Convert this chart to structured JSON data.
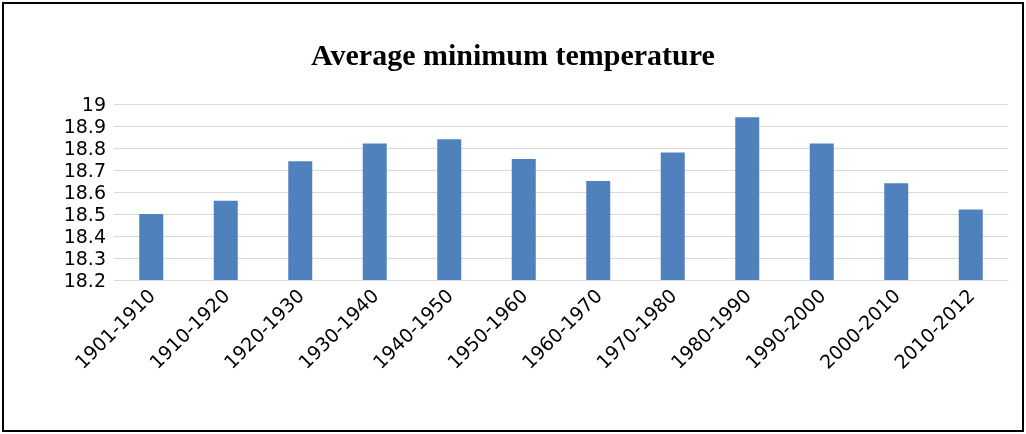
{
  "chart_data": {
    "type": "bar",
    "title": "Average minimum temperature",
    "categories": [
      "1901-1910",
      "1910-1920",
      "1920-1930",
      "1930-1940",
      "1940-1950",
      "1950-1960",
      "1960-1970",
      "1970-1980",
      "1980-1990",
      "1990-2000",
      "2000-2010",
      "2010-2012"
    ],
    "values": [
      18.5,
      18.56,
      18.74,
      18.82,
      18.84,
      18.75,
      18.65,
      18.78,
      18.94,
      18.82,
      18.64,
      18.52
    ],
    "color": "#4f81bd",
    "ylim": [
      18.2,
      19
    ],
    "yticks": [
      18.2,
      18.3,
      18.4,
      18.5,
      18.6,
      18.7,
      18.8,
      18.9,
      19
    ],
    "grid": true
  }
}
